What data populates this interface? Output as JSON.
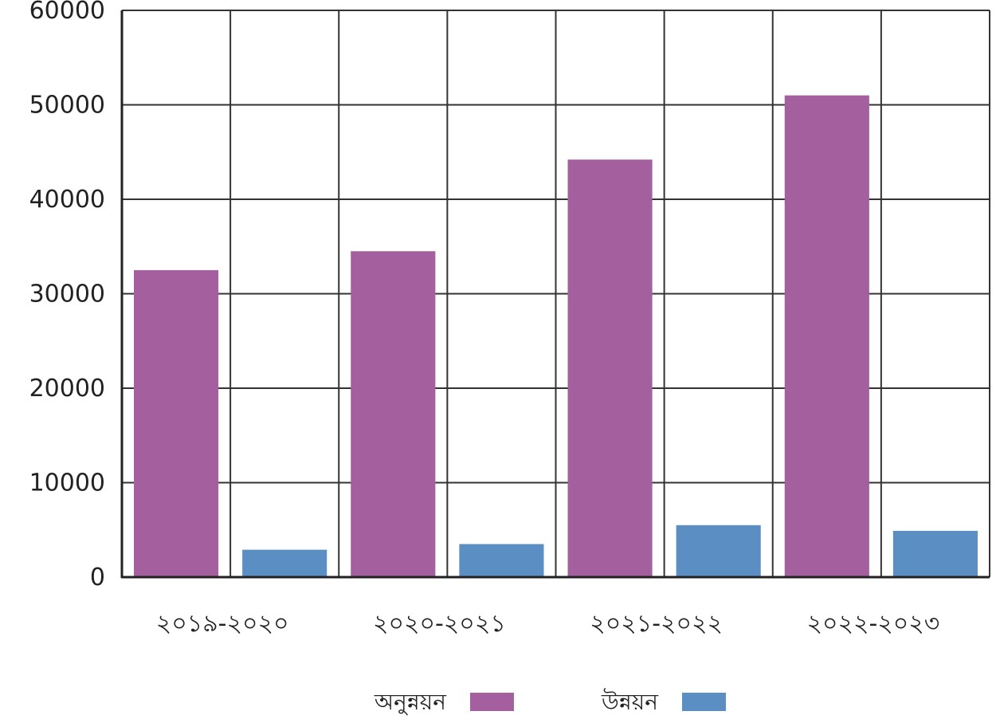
{
  "chart_data": {
    "type": "bar",
    "categories": [
      "২০১৯-২০২০",
      "২০২০-২০২১",
      "২০২১-২০২২",
      "২০২২-২০২৩"
    ],
    "series": [
      {
        "name": "অনুন্নয়ন",
        "color": "#a4609e",
        "values": [
          32500,
          34500,
          44200,
          51000
        ]
      },
      {
        "name": "উন্নয়ন",
        "color": "#5b8fc4",
        "values": [
          2900,
          3500,
          5500,
          4900
        ]
      }
    ],
    "y_ticks": [
      "0",
      "10000",
      "20000",
      "30000",
      "40000",
      "50000",
      "60000"
    ],
    "ylim": [
      0,
      60000
    ],
    "title": "",
    "xlabel": "",
    "ylabel": "",
    "grid": true,
    "legend": "bottom"
  }
}
